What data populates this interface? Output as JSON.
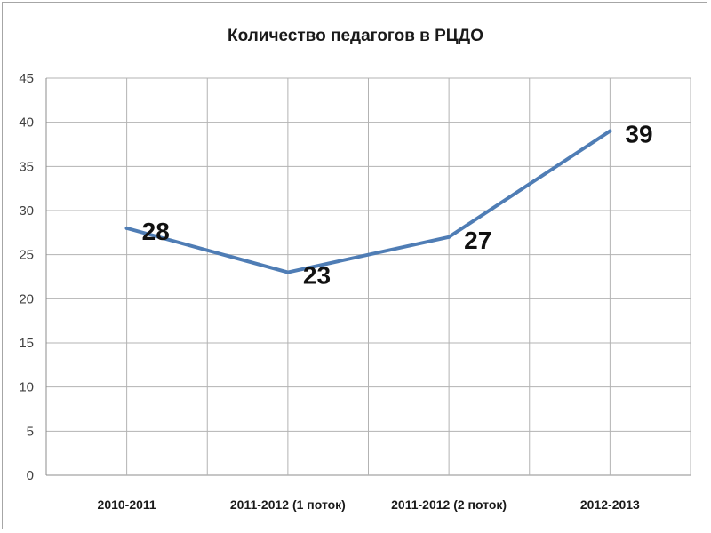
{
  "chart_data": {
    "type": "line",
    "title": "Количество педагогов в РЦДО",
    "xlabel": "",
    "ylabel": "",
    "categories": [
      "2010-2011",
      "2011-2012 (1 поток)",
      "2011-2012 (2 поток)",
      "2012-2013"
    ],
    "series": [
      {
        "values": [
          28,
          23,
          27,
          39
        ],
        "color": "#4f7db5"
      }
    ],
    "data_labels": [
      "28",
      "23",
      "27",
      "39"
    ],
    "ylim": [
      0,
      45
    ],
    "yticks": [
      "0",
      "5",
      "10",
      "15",
      "20",
      "25",
      "30",
      "35",
      "40",
      "45"
    ],
    "grid": true,
    "legend": "none"
  }
}
